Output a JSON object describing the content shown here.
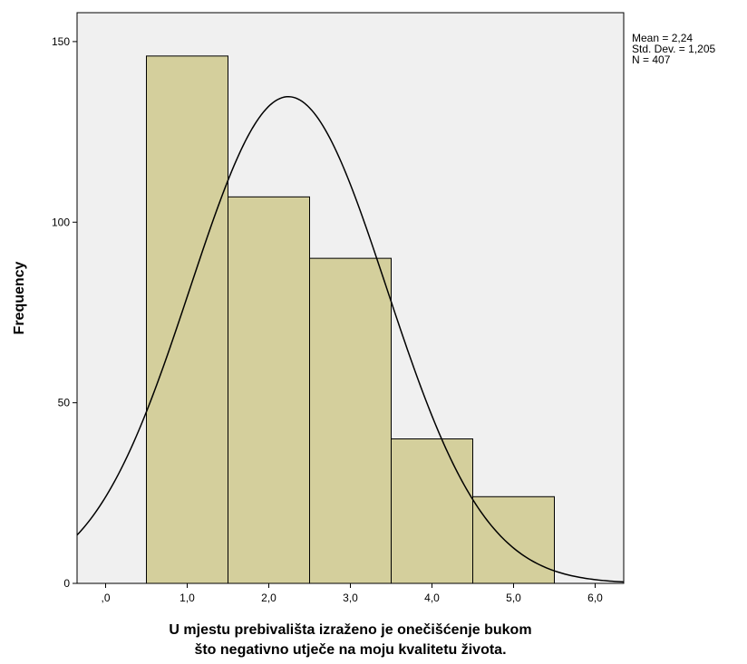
{
  "chart_data": {
    "type": "bar",
    "subtype": "histogram",
    "bins": [
      {
        "center": 1.0,
        "start": 0.5,
        "end": 1.5,
        "value": 146
      },
      {
        "center": 2.0,
        "start": 1.5,
        "end": 2.5,
        "value": 107
      },
      {
        "center": 3.0,
        "start": 2.5,
        "end": 3.5,
        "value": 90
      },
      {
        "center": 4.0,
        "start": 3.5,
        "end": 4.5,
        "value": 40
      },
      {
        "center": 5.0,
        "start": 4.5,
        "end": 5.5,
        "value": 24
      }
    ],
    "xlabel_lines": [
      "U mjestu prebivališta izraženo je onečišćenje bukom",
      "što negativno utječe na moju kvalitetu života."
    ],
    "ylabel": "Frequency",
    "xlim": [
      -0.35,
      6.35
    ],
    "ylim": [
      0,
      158
    ],
    "xticks": [
      {
        "value": 0,
        "label": ",0"
      },
      {
        "value": 1,
        "label": "1,0"
      },
      {
        "value": 2,
        "label": "2,0"
      },
      {
        "value": 3,
        "label": "3,0"
      },
      {
        "value": 4,
        "label": "4,0"
      },
      {
        "value": 5,
        "label": "5,0"
      },
      {
        "value": 6,
        "label": "6,0"
      }
    ],
    "yticks": [
      {
        "value": 0,
        "label": "0"
      },
      {
        "value": 50,
        "label": "50"
      },
      {
        "value": 100,
        "label": "100"
      },
      {
        "value": 150,
        "label": "150"
      }
    ],
    "normal_curve": {
      "mean": 2.24,
      "std": 1.205,
      "n": 407,
      "bin_width": 1
    },
    "stats_lines": [
      "Mean = 2,24",
      "Std. Dev. = 1,205",
      "N = 407"
    ],
    "grid": false,
    "colors": {
      "bar_fill": "#d4cf9c",
      "bar_stroke": "#000000",
      "plot_background": "#f0f0f0",
      "curve": "#000000"
    }
  }
}
